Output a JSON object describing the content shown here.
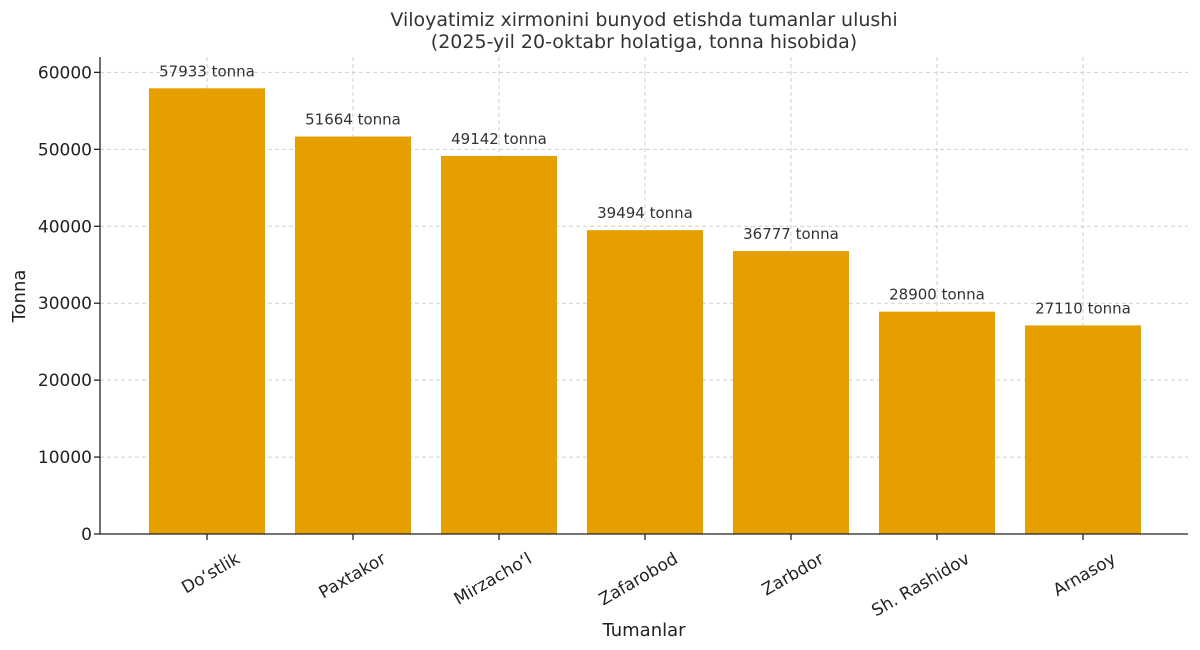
{
  "chart_data": {
    "type": "bar",
    "title_line1": "Viloyatimiz xirmonini bunyod etishda tumanlar ulushi",
    "title_line2": "(2025-yil 20-oktabr holatiga, tonna hisobida)",
    "xlabel": "Tumanlar",
    "ylabel": "Tonna",
    "categories": [
      "Do‘stlik",
      "Paxtakor",
      "Mirzacho‘l",
      "Zafarobod",
      "Zarbdor",
      "Sh. Rashidov",
      "Arnasoy"
    ],
    "values": [
      57933,
      51664,
      49142,
      39494,
      36777,
      28900,
      27110
    ],
    "value_labels": [
      "57933 tonna",
      "51664 tonna",
      "49142 tonna",
      "39494 tonna",
      "36777 tonna",
      "28900 tonna",
      "27110 tonna"
    ],
    "ylim": [
      0,
      60000
    ],
    "yticks": [
      0,
      10000,
      20000,
      30000,
      40000,
      50000,
      60000
    ],
    "bar_color": "#E5A000",
    "grid": true
  }
}
